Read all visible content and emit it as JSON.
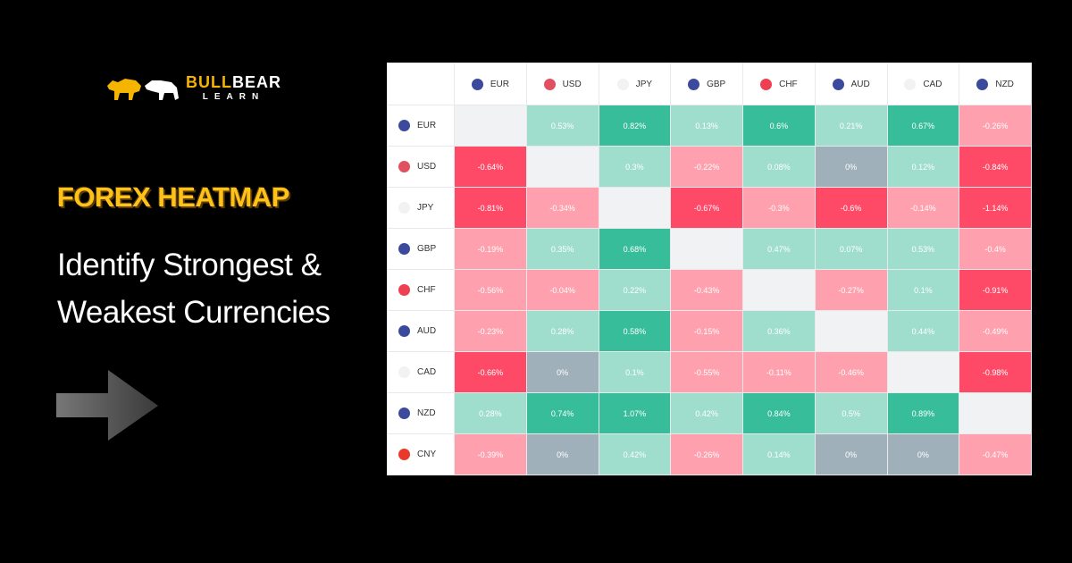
{
  "brand": {
    "part1": "BULL",
    "part2": "BEAR",
    "part3": "LEARN"
  },
  "title": "FOREX HEATMAP",
  "subtitle_lines": [
    "Identify Strongest &",
    "Weakest Currencies"
  ],
  "colors": {
    "strong_green": "#37bd9a",
    "light_green": "#9fdecd",
    "neutral": "#a0b0ba",
    "light_red": "#ffa0ae",
    "strong_red": "#ff4a67",
    "empty": "#f1f2f4"
  },
  "columns": [
    {
      "code": "EUR",
      "flag": "eu-flag-icon",
      "color": "#3b4a9c"
    },
    {
      "code": "USD",
      "flag": "us-flag-icon",
      "color": "#e05060"
    },
    {
      "code": "JPY",
      "flag": "jp-flag-icon",
      "color": "#f2f2f2"
    },
    {
      "code": "GBP",
      "flag": "gb-flag-icon",
      "color": "#3b4a9c"
    },
    {
      "code": "CHF",
      "flag": "ch-flag-icon",
      "color": "#ee4050"
    },
    {
      "code": "AUD",
      "flag": "au-flag-icon",
      "color": "#3b4a9c"
    },
    {
      "code": "CAD",
      "flag": "ca-flag-icon",
      "color": "#f2f2f2"
    },
    {
      "code": "NZD",
      "flag": "nz-flag-icon",
      "color": "#3b4a9c"
    }
  ],
  "rows": [
    {
      "code": "EUR",
      "flag": "eu-flag-icon",
      "color": "#3b4a9c",
      "values": [
        null,
        0.53,
        0.82,
        0.13,
        0.6,
        0.21,
        0.67,
        -0.26
      ]
    },
    {
      "code": "USD",
      "flag": "us-flag-icon",
      "color": "#e05060",
      "values": [
        -0.64,
        null,
        0.3,
        -0.22,
        0.08,
        0,
        0.12,
        -0.84
      ]
    },
    {
      "code": "JPY",
      "flag": "jp-flag-icon",
      "color": "#f2f2f2",
      "values": [
        -0.81,
        -0.34,
        null,
        -0.67,
        -0.3,
        -0.6,
        -0.14,
        -1.14
      ]
    },
    {
      "code": "GBP",
      "flag": "gb-flag-icon",
      "color": "#3b4a9c",
      "values": [
        -0.19,
        0.35,
        0.68,
        null,
        0.47,
        0.07,
        0.53,
        -0.4
      ]
    },
    {
      "code": "CHF",
      "flag": "ch-flag-icon",
      "color": "#ee4050",
      "values": [
        -0.56,
        -0.04,
        0.22,
        -0.43,
        null,
        -0.27,
        0.1,
        -0.91
      ]
    },
    {
      "code": "AUD",
      "flag": "au-flag-icon",
      "color": "#3b4a9c",
      "values": [
        -0.23,
        0.28,
        0.58,
        -0.15,
        0.36,
        null,
        0.44,
        -0.49
      ]
    },
    {
      "code": "CAD",
      "flag": "ca-flag-icon",
      "color": "#f2f2f2",
      "values": [
        -0.66,
        0,
        0.1,
        -0.55,
        -0.11,
        -0.46,
        null,
        -0.98
      ]
    },
    {
      "code": "NZD",
      "flag": "nz-flag-icon",
      "color": "#3b4a9c",
      "values": [
        0.28,
        0.74,
        1.07,
        0.42,
        0.84,
        0.5,
        0.89,
        null
      ]
    },
    {
      "code": "CNY",
      "flag": "cn-flag-icon",
      "color": "#e8392b",
      "values": [
        -0.39,
        0,
        0.42,
        -0.26,
        0.14,
        0,
        0,
        -0.47
      ]
    }
  ]
}
